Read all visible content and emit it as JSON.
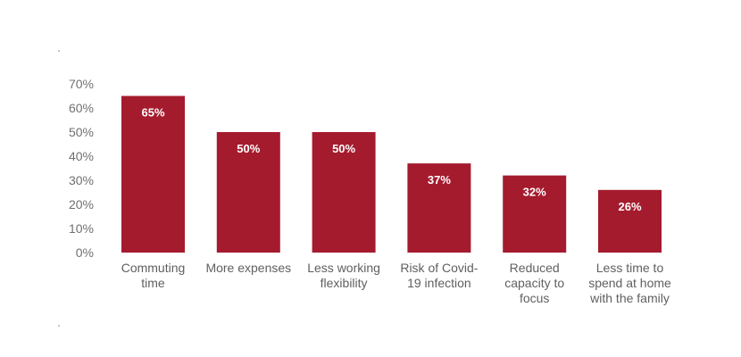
{
  "chart_data": {
    "type": "bar",
    "title": "",
    "xlabel": "",
    "ylabel": "",
    "ylim": [
      0,
      70
    ],
    "y_ticks": [
      "0%",
      "10%",
      "20%",
      "30%",
      "40%",
      "50%",
      "60%",
      "70%"
    ],
    "y_tick_values": [
      0,
      10,
      20,
      30,
      40,
      50,
      60,
      70
    ],
    "grid": false,
    "legend": "none",
    "bar_color": "#a51b2e",
    "categories": [
      [
        "Commuting",
        "time"
      ],
      [
        "More expenses"
      ],
      [
        "Less working",
        "flexibility"
      ],
      [
        "Risk of Covid-",
        "19 infection"
      ],
      [
        "Reduced",
        "capacity to",
        "focus"
      ],
      [
        "Less time to",
        "spend at home",
        "with the family"
      ]
    ],
    "values": [
      65,
      50,
      50,
      37,
      32,
      26
    ],
    "data_labels": [
      "65%",
      "50%",
      "50%",
      "37%",
      "32%",
      "26%"
    ]
  }
}
